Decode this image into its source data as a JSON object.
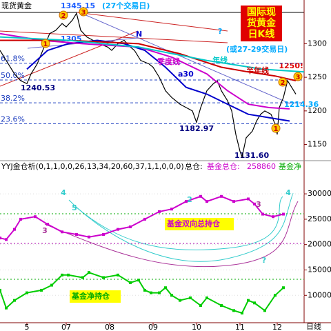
{
  "chart_data": [
    {
      "type": "line",
      "title": "现货黄金",
      "title_lines": [
        "国际现",
        "货黄金",
        "日K线"
      ],
      "xlim": [
        0,
        147
      ],
      "ylim": [
        1127,
        1365
      ],
      "yticks": [
        1150,
        1200,
        1250,
        1300
      ],
      "series": [
        {
          "name": "现货黄金",
          "color": "#000000",
          "x": [
            0,
            3,
            7,
            10,
            13,
            15,
            18,
            22,
            24,
            27,
            30,
            32,
            35,
            37,
            39,
            42,
            45,
            48,
            52,
            54,
            57,
            60,
            63,
            65,
            68,
            72,
            74,
            77,
            80,
            83,
            87,
            90,
            93,
            95,
            97,
            100,
            103,
            105,
            107,
            110,
            112,
            114,
            116,
            117,
            119,
            122,
            124,
            126,
            128,
            131,
            133,
            134,
            135,
            137,
            139,
            141,
            143
          ],
          "values": [
            1290,
            1275,
            1255,
            1245,
            1240.53,
            1255,
            1270,
            1300,
            1315,
            1320,
            1330,
            1325,
            1335,
            1345.15,
            1320,
            1310,
            1305,
            1300,
            1295,
            1290,
            1300,
            1305,
            1295,
            1290,
            1275,
            1270,
            1265,
            1250,
            1230,
            1220,
            1210,
            1205,
            1200,
            1182.97,
            1205,
            1230,
            1240,
            1245,
            1230,
            1215,
            1200,
            1165,
            1140,
            1131.6,
            1160,
            1170,
            1185,
            1195,
            1200,
            1195,
            1180,
            1165,
            1205,
            1220,
            1245,
            1235,
            1225
          ]
        },
        {
          "name": "a30",
          "color": "#0000cc",
          "x": [
            13,
            23,
            33,
            47,
            60,
            70,
            80,
            90,
            100,
            110,
            120,
            130,
            140
          ],
          "values": [
            1262,
            1290,
            1300,
            1305,
            1300,
            1290,
            1265,
            1235,
            1225,
            1210,
            1195,
            1190,
            1185
          ]
        },
        {
          "name": "季度线",
          "color": "#cc00cc",
          "x": [
            0,
            20,
            40,
            67,
            83,
            100,
            110,
            120,
            130,
            140
          ],
          "values": [
            1315,
            1305,
            1300,
            1295,
            1280,
            1255,
            1230,
            1210,
            1205,
            1203
          ]
        },
        {
          "name": "半年线",
          "color": "#cc0000",
          "x": [
            0,
            33,
            67,
            87,
            107,
            120,
            133,
            143
          ],
          "values": [
            1305,
            1305,
            1300,
            1285,
            1265,
            1258,
            1252,
            1245
          ]
        },
        {
          "name": "年线",
          "color": "#00c8c8",
          "x": [
            0,
            33,
            67,
            100,
            127,
            147
          ],
          "values": [
            1310,
            1305,
            1295,
            1275,
            1262,
            1258
          ]
        }
      ],
      "fib_levels": [
        {
          "label": "61.8%",
          "value": 1271
        },
        {
          "label": "50.0%",
          "value": 1246
        },
        {
          "label": "38.2%",
          "value": 1212
        },
        {
          "label": "23.6%",
          "value": 1181
        }
      ],
      "annotations": [
        "1345.15",
        "(27个交易日)",
        "1305",
        "N",
        "?",
        "(或27-29交易日)",
        "1250!",
        "1240.53",
        "1214.36",
        "1182.97",
        "1131.60"
      ],
      "markers": [
        "1",
        "2",
        "3",
        "2",
        "3",
        "1"
      ]
    },
    {
      "type": "line",
      "header": [
        "YYJ金仓析(0,1,1,0,0,26,13,34,20,60,37,1,1,0,0,0)",
        "总仓:",
        "基金总仓:",
        "258860",
        "基金净"
      ],
      "xlim": [
        0,
        147
      ],
      "ylim": [
        4600,
        34500
      ],
      "yticks": [
        10000,
        15000,
        20000,
        25000,
        30000
      ],
      "xticks": [
        {
          "value": 13,
          "label": "5"
        },
        {
          "value": 32,
          "label": "07"
        },
        {
          "value": 53,
          "label": "08"
        },
        {
          "value": 74,
          "label": "09"
        },
        {
          "value": 95,
          "label": "10"
        },
        {
          "value": 116,
          "label": "11"
        },
        {
          "value": 134,
          "label": "12"
        }
      ],
      "x_axis_label": "日线",
      "series": [
        {
          "name": "基金双向总持仓",
          "color": "#cc00cc",
          "x": [
            0,
            3,
            7,
            10,
            17,
            23,
            30,
            37,
            43,
            50,
            57,
            63,
            70,
            77,
            83,
            90,
            97,
            100,
            107,
            113,
            120,
            123,
            127,
            132,
            137
          ],
          "values": [
            21300,
            21000,
            23000,
            25000,
            25500,
            24000,
            22500,
            22000,
            21500,
            22000,
            23000,
            23500,
            25000,
            26500,
            27000,
            28500,
            29500,
            28500,
            29500,
            28500,
            29000,
            28000,
            26000,
            25500,
            26000
          ]
        },
        {
          "name": "基金净持仓",
          "color": "#00cc00",
          "x": [
            0,
            3,
            7,
            13,
            20,
            25,
            30,
            33,
            40,
            43,
            50,
            57,
            63,
            67,
            70,
            73,
            77,
            80,
            83,
            87,
            92,
            97,
            100,
            107,
            113,
            117,
            120,
            123,
            128,
            133,
            137
          ],
          "values": [
            11000,
            7500,
            9000,
            10500,
            11000,
            12000,
            14000,
            14000,
            13500,
            14500,
            13500,
            14000,
            12500,
            13000,
            11000,
            10500,
            10500,
            11500,
            10000,
            9000,
            9500,
            8000,
            9500,
            8000,
            7000,
            6500,
            9000,
            8500,
            7000,
            10000,
            11500
          ]
        }
      ],
      "markers": [
        "4",
        "5",
        "3",
        "2",
        "3",
        "4",
        "?"
      ]
    }
  ]
}
